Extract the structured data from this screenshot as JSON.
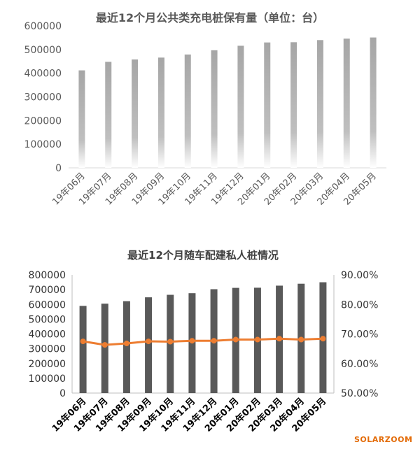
{
  "watermark": "SOLARZOOM",
  "colors": {
    "bar1_top": "#a6a6a6",
    "bar2": "#595959",
    "line2": "#ed7d31",
    "axis": "#d9d9d9"
  },
  "chart_data": [
    {
      "type": "bar",
      "title": "最近12个月公共类充电桩保有量（单位：台）",
      "categories": [
        "19年06月",
        "19年07月",
        "19年08月",
        "19年09月",
        "19年10月",
        "19年11月",
        "19年12月",
        "20年01月",
        "20年02月",
        "20年03月",
        "20年04月",
        "20年05月"
      ],
      "values": [
        412000,
        448000,
        458000,
        466000,
        479000,
        497000,
        516000,
        530000,
        531000,
        540000,
        546000,
        551000
      ],
      "ylim": [
        0,
        600000
      ],
      "yticks": [
        0,
        100000,
        200000,
        300000,
        400000,
        500000,
        600000
      ],
      "ytick_labels": [
        "0",
        "100000",
        "200000",
        "300000",
        "400000",
        "500000",
        "600000"
      ],
      "grid": false,
      "style": "gradient bars fading to white at bottom"
    },
    {
      "type": "bar+line",
      "title": "最近12个月随车配建私人桩情况",
      "categories": [
        "19年06月",
        "19年07月",
        "19年08月",
        "19年09月",
        "19年10月",
        "19年11月",
        "19年12月",
        "20年01月",
        "20年02月",
        "20年03月",
        "20年04月",
        "20年05月"
      ],
      "series": [
        {
          "type": "bar",
          "axis": "left",
          "values": [
            590000,
            605000,
            622000,
            648000,
            665000,
            676000,
            703000,
            712000,
            713000,
            727000,
            740000,
            750000
          ]
        },
        {
          "type": "line",
          "axis": "right",
          "values": [
            0.675,
            0.663,
            0.668,
            0.675,
            0.674,
            0.677,
            0.677,
            0.681,
            0.681,
            0.684,
            0.681,
            0.684
          ]
        }
      ],
      "ylim_left": [
        0,
        800000
      ],
      "yticks_left": [
        0,
        100000,
        200000,
        300000,
        400000,
        500000,
        600000,
        700000,
        800000
      ],
      "ytick_labels_left": [
        "0",
        "100000",
        "200000",
        "300000",
        "400000",
        "500000",
        "600000",
        "700000",
        "800000"
      ],
      "ylim_right": [
        0.5,
        0.9
      ],
      "yticks_right": [
        0.5,
        0.6,
        0.7,
        0.8,
        0.9
      ],
      "ytick_labels_right": [
        "50.00%",
        "60.00%",
        "70.00%",
        "80.00%",
        "90.00%"
      ],
      "grid": false
    }
  ]
}
